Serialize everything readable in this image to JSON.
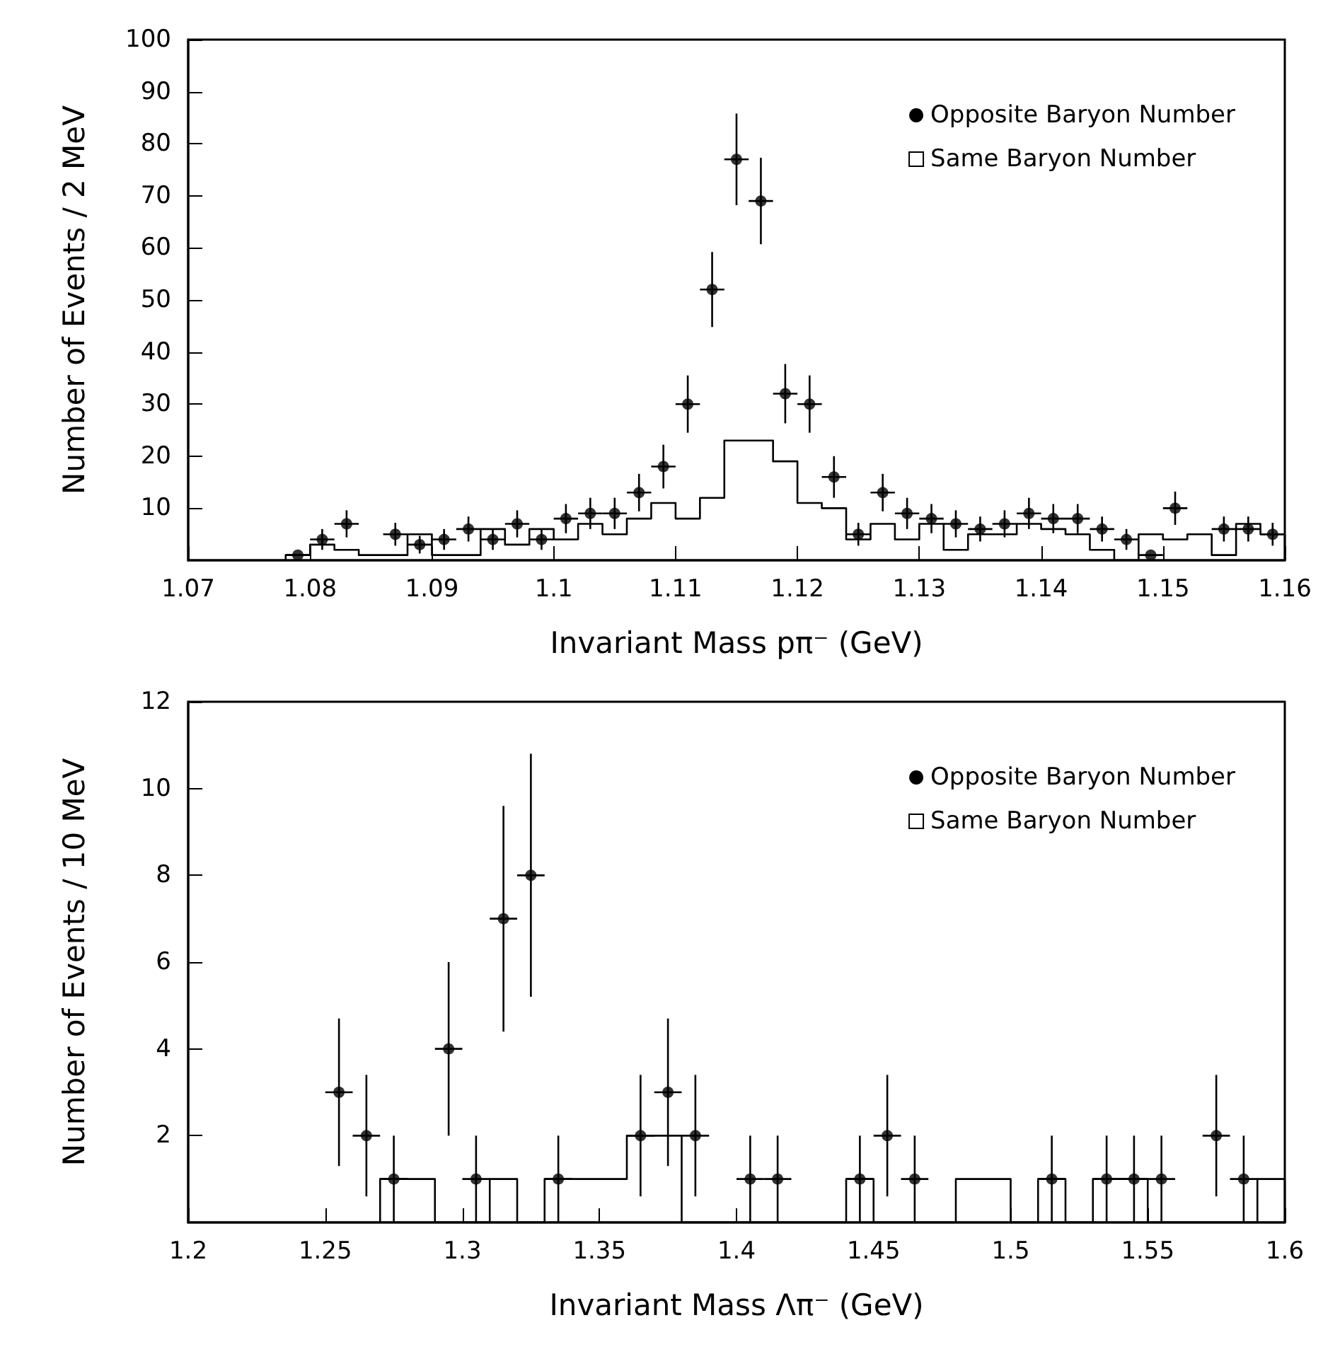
{
  "chart_data": [
    {
      "type": "scatter",
      "xlabel": "Invariant Mass pπ⁻ (GeV)",
      "ylabel": "Number of Events / 2 MeV",
      "xlim": [
        1.07,
        1.16
      ],
      "ylim": [
        0,
        100
      ],
      "xticks": [
        1.07,
        1.08,
        1.09,
        1.1,
        1.11,
        1.12,
        1.13,
        1.14,
        1.15,
        1.16
      ],
      "yticks": [
        10,
        20,
        30,
        40,
        50,
        60,
        70,
        80,
        90,
        100
      ],
      "legend": "top right",
      "marker": "circle",
      "series": [
        {
          "name": "Opposite Baryon Number",
          "color": "#000000",
          "x": [
            1.079,
            1.081,
            1.083,
            1.087,
            1.089,
            1.091,
            1.093,
            1.095,
            1.097,
            1.099,
            1.101,
            1.103,
            1.105,
            1.107,
            1.109,
            1.111,
            1.113,
            1.115,
            1.117,
            1.119,
            1.121,
            1.123,
            1.125,
            1.127,
            1.129,
            1.131,
            1.133,
            1.135,
            1.137,
            1.139,
            1.141,
            1.143,
            1.145,
            1.147,
            1.149,
            1.151,
            1.155,
            1.157,
            1.159
          ],
          "values": [
            1,
            4,
            7,
            5,
            3,
            4,
            6,
            4,
            7,
            4,
            8,
            9,
            9,
            13,
            18,
            30,
            52,
            77,
            69,
            32,
            30,
            16,
            5,
            13,
            9,
            8,
            7,
            6,
            7,
            9,
            8,
            8,
            6,
            4,
            1,
            10,
            6,
            6,
            5
          ],
          "errors": [
            null,
            2,
            2.6,
            2.2,
            1.7,
            2,
            2.4,
            2,
            2.6,
            2,
            2.8,
            3,
            3,
            3.6,
            4.2,
            5.5,
            7.2,
            8.8,
            8.3,
            5.7,
            5.5,
            4,
            2.2,
            3.6,
            3,
            2.8,
            2.6,
            2.4,
            2.6,
            3,
            2.8,
            2.8,
            2.4,
            2,
            null,
            3.2,
            2.4,
            2.4,
            2.2
          ],
          "xerrors": [
            0.001,
            0.001,
            0.001,
            0.001,
            0.001,
            0.001,
            0.001,
            0.001,
            0.001,
            0.001,
            0.001,
            0.001,
            0.001,
            0.001,
            0.001,
            0.001,
            0.001,
            0.001,
            0.001,
            0.001,
            0.001,
            0.001,
            0.001,
            0.001,
            0.001,
            0.001,
            0.001,
            0.001,
            0.001,
            0.001,
            0.001,
            0.001,
            0.001,
            0.001,
            0.001,
            0.001,
            0.001,
            0.001,
            0.001
          ]
        },
        {
          "name": "Same Baryon Number",
          "color": "#000000",
          "type": "histogram",
          "bins": [
            1.078,
            1.08,
            1.082,
            1.084,
            1.086,
            1.088,
            1.09,
            1.092,
            1.094,
            1.096,
            1.098,
            1.1,
            1.102,
            1.104,
            1.106,
            1.108,
            1.11,
            1.112,
            1.114,
            1.116,
            1.118,
            1.12,
            1.122,
            1.124,
            1.126,
            1.128,
            1.13,
            1.132,
            1.134,
            1.136,
            1.138,
            1.14,
            1.142,
            1.144,
            1.146,
            1.148,
            1.15,
            1.152,
            1.154,
            1.156,
            1.158,
            1.16
          ],
          "values": [
            1,
            3,
            2,
            1,
            1,
            5,
            1,
            1,
            6,
            3,
            6,
            4,
            7,
            5,
            8,
            11,
            8,
            12,
            23,
            23,
            19,
            11,
            10,
            4,
            7,
            4,
            7,
            2,
            5,
            5,
            7,
            6,
            5,
            2,
            0,
            5,
            4,
            5,
            1,
            7,
            5
          ]
        }
      ]
    },
    {
      "type": "scatter",
      "xlabel": "Invariant Mass Λπ⁻ (GeV)",
      "ylabel": "Number of Events / 10 MeV",
      "xlim": [
        1.2,
        1.6
      ],
      "ylim": [
        0,
        12
      ],
      "xticks": [
        1.2,
        1.25,
        1.3,
        1.35,
        1.4,
        1.45,
        1.5,
        1.55,
        1.6
      ],
      "yticks": [
        2,
        4,
        6,
        8,
        10,
        12
      ],
      "legend": "top right",
      "marker": "circle",
      "series": [
        {
          "name": "Opposite Baryon Number",
          "color": "#000000",
          "x": [
            1.255,
            1.265,
            1.275,
            1.295,
            1.305,
            1.315,
            1.325,
            1.335,
            1.365,
            1.375,
            1.385,
            1.405,
            1.415,
            1.445,
            1.455,
            1.465,
            1.515,
            1.535,
            1.545,
            1.555,
            1.575,
            1.585
          ],
          "values": [
            3,
            2,
            1,
            4,
            1,
            7,
            8,
            1,
            2,
            3,
            2,
            1,
            1,
            1,
            2,
            1,
            1,
            1,
            1,
            1,
            2,
            1
          ],
          "errors": [
            1.7,
            1.4,
            1,
            2,
            1,
            2.6,
            2.8,
            1,
            1.4,
            1.7,
            1.4,
            1,
            1,
            1,
            1.4,
            1,
            1,
            1,
            1,
            1,
            1.4,
            1
          ],
          "xerrors": [
            0.005,
            0.005,
            0.005,
            0.005,
            0.005,
            0.005,
            0.005,
            0.005,
            0.005,
            0.005,
            0.005,
            0.005,
            0.005,
            0.005,
            0.005,
            0.005,
            0.005,
            0.005,
            0.005,
            0.005,
            0.005,
            0.005
          ]
        },
        {
          "name": "Same Baryon Number",
          "color": "#000000",
          "type": "histogram",
          "bins": [
            1.27,
            1.29,
            1.31,
            1.32,
            1.33,
            1.36,
            1.38,
            1.44,
            1.45,
            1.48,
            1.5,
            1.51,
            1.52,
            1.53,
            1.55,
            1.59,
            1.6
          ],
          "values": [
            1,
            0,
            1,
            0,
            1,
            2,
            0,
            1,
            0,
            1,
            0,
            1,
            0,
            1,
            0,
            1
          ]
        }
      ]
    }
  ]
}
